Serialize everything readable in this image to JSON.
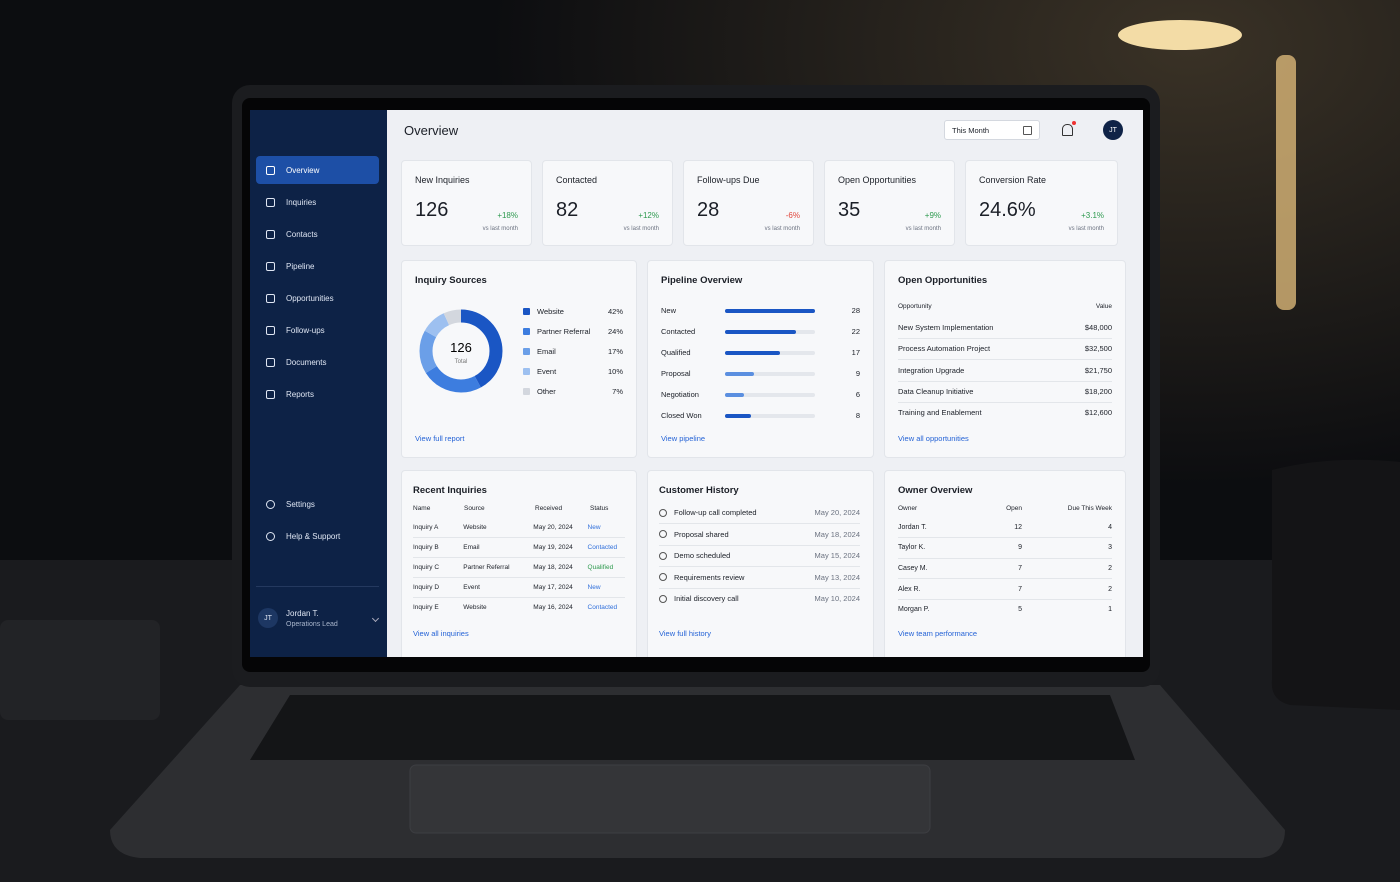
{
  "header": {
    "title": "Overview",
    "period": "This Month",
    "avatar": "JT"
  },
  "sidebar": {
    "nav": [
      "Overview",
      "Inquiries",
      "Contacts",
      "Pipeline",
      "Opportunities",
      "Follow-ups",
      "Documents",
      "Reports"
    ],
    "bottom": [
      "Settings",
      "Help & Support"
    ],
    "user": {
      "initials": "JT",
      "name": "Jordan T.",
      "role": "Operations Lead"
    }
  },
  "kpis": [
    {
      "label": "New Inquiries",
      "value": 126,
      "change": "+18%",
      "note": "vs last month"
    },
    {
      "label": "Contacted",
      "value": 82,
      "change": "+12%",
      "note": "vs last month"
    },
    {
      "label": "Follow-ups Due",
      "value": 28,
      "change": "-6%",
      "note": "vs last month"
    },
    {
      "label": "Open Opportunities",
      "value": 35,
      "change": "+9%",
      "note": "vs last month"
    },
    {
      "label": "Conversion Rate",
      "value": "24.6%",
      "change": "+3.1%",
      "note": "vs last month"
    }
  ],
  "inquiry_sources": {
    "title": "Inquiry Sources",
    "total": 126,
    "total_label": "Total",
    "categories": [
      "Website",
      "Partner Referral",
      "Email",
      "Event",
      "Other"
    ],
    "values": [
      42,
      24,
      17,
      10,
      7
    ],
    "value_labels": [
      "42%",
      "24%",
      "17%",
      "10%",
      "7%"
    ],
    "colors": [
      "#1a56c4",
      "#3d7ddf",
      "#6b9fe8",
      "#9dc0f0",
      "#d3d7de"
    ],
    "link": "View full report"
  },
  "pipeline": {
    "title": "Pipeline Overview",
    "categories": [
      "New",
      "Contacted",
      "Qualified",
      "Proposal",
      "Negotiation",
      "Closed Won"
    ],
    "values": [
      28,
      22,
      17,
      9,
      6,
      8
    ],
    "colors": [
      "#1a56c4",
      "#1a56c4",
      "#1a56c4",
      "#5b8fe0",
      "#5b8fe0",
      "#1a56c4"
    ],
    "link": "View pipeline"
  },
  "open_opportunities": {
    "title": "Open Opportunities",
    "columns": [
      "Opportunity",
      "Value"
    ],
    "rows": [
      [
        "New System Implementation",
        "$48,000"
      ],
      [
        "Process Automation Project",
        "$32,500"
      ],
      [
        "Integration Upgrade",
        "$21,750"
      ],
      [
        "Data Cleanup Initiative",
        "$18,200"
      ],
      [
        "Training and Enablement",
        "$12,600"
      ]
    ],
    "link": "View all opportunities"
  },
  "recent_inquiries": {
    "title": "Recent Inquiries",
    "columns": [
      "Name",
      "Source",
      "Received",
      "Status"
    ],
    "rows": [
      [
        "Inquiry A",
        "Website",
        "May 20, 2024",
        "New"
      ],
      [
        "Inquiry B",
        "Email",
        "May 19, 2024",
        "Contacted"
      ],
      [
        "Inquiry C",
        "Partner Referral",
        "May 18, 2024",
        "Qualified"
      ],
      [
        "Inquiry D",
        "Event",
        "May 17, 2024",
        "New"
      ],
      [
        "Inquiry E",
        "Website",
        "May 16, 2024",
        "Contacted"
      ]
    ],
    "status_colors": [
      "#2f6fdb",
      "#2f6fdb",
      "#2e9a4f",
      "#2f6fdb",
      "#2f6fdb"
    ],
    "link": "View all inquiries"
  },
  "customer_history": {
    "title": "Customer History",
    "items": [
      [
        "Follow-up call completed",
        "May 20, 2024"
      ],
      [
        "Proposal shared",
        "May 18, 2024"
      ],
      [
        "Demo scheduled",
        "May 15, 2024"
      ],
      [
        "Requirements review",
        "May 13, 2024"
      ],
      [
        "Initial discovery call",
        "May 10, 2024"
      ]
    ],
    "link": "View full history"
  },
  "owner_overview": {
    "title": "Owner Overview",
    "columns": [
      "Owner",
      "Open",
      "Due This Week"
    ],
    "rows": [
      [
        "Jordan T.",
        12,
        4
      ],
      [
        "Taylor K.",
        9,
        3
      ],
      [
        "Casey M.",
        7,
        2
      ],
      [
        "Alex R.",
        7,
        2
      ],
      [
        "Morgan P.",
        5,
        1
      ]
    ],
    "link": "View team performance"
  }
}
